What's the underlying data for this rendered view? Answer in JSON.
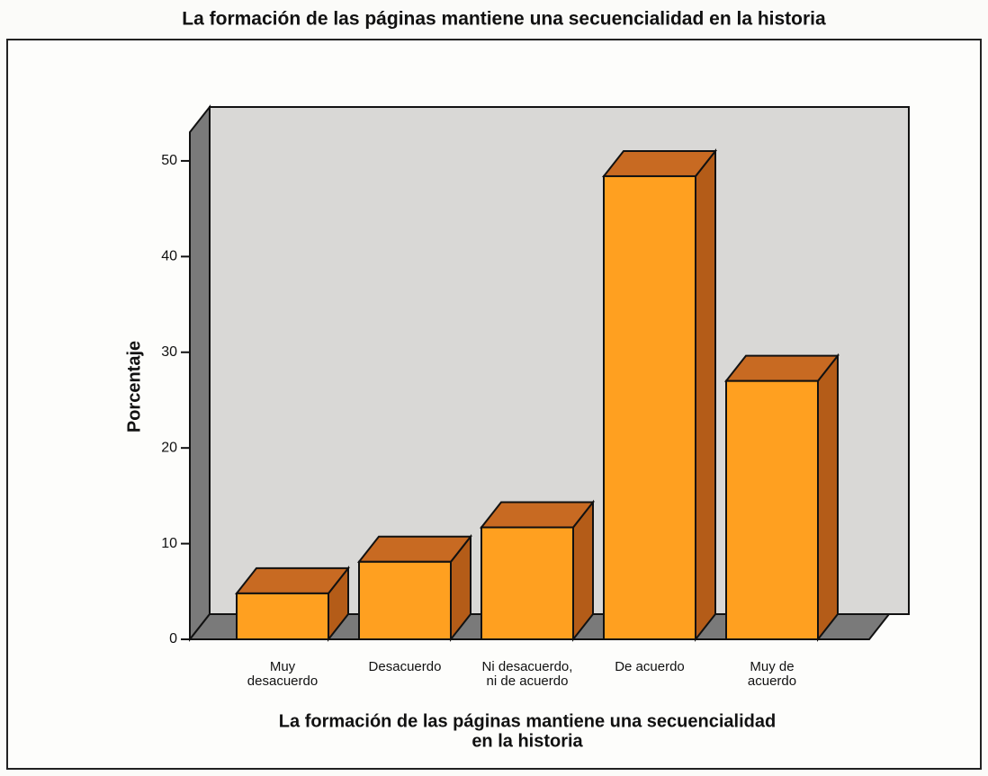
{
  "chart_data": {
    "type": "bar3d",
    "title": "La formación de las páginas mantiene una secuencialidad en la historia",
    "xlabel": [
      "La formación de las páginas mantiene una secuencialidad",
      "en la historia"
    ],
    "ylabel": "Porcentaje",
    "categories": [
      [
        "Muy",
        "desacuerdo"
      ],
      [
        "Desacuerdo"
      ],
      [
        "Ni desacuerdo,",
        "ni de acuerdo"
      ],
      [
        "De acuerdo"
      ],
      [
        "Muy de",
        "acuerdo"
      ]
    ],
    "values": [
      4.8,
      8.1,
      11.7,
      48.4,
      27.0
    ],
    "color": "#ffa020",
    "ylim": [
      0,
      53
    ],
    "yticks": [
      0,
      10,
      20,
      30,
      40,
      50
    ]
  }
}
